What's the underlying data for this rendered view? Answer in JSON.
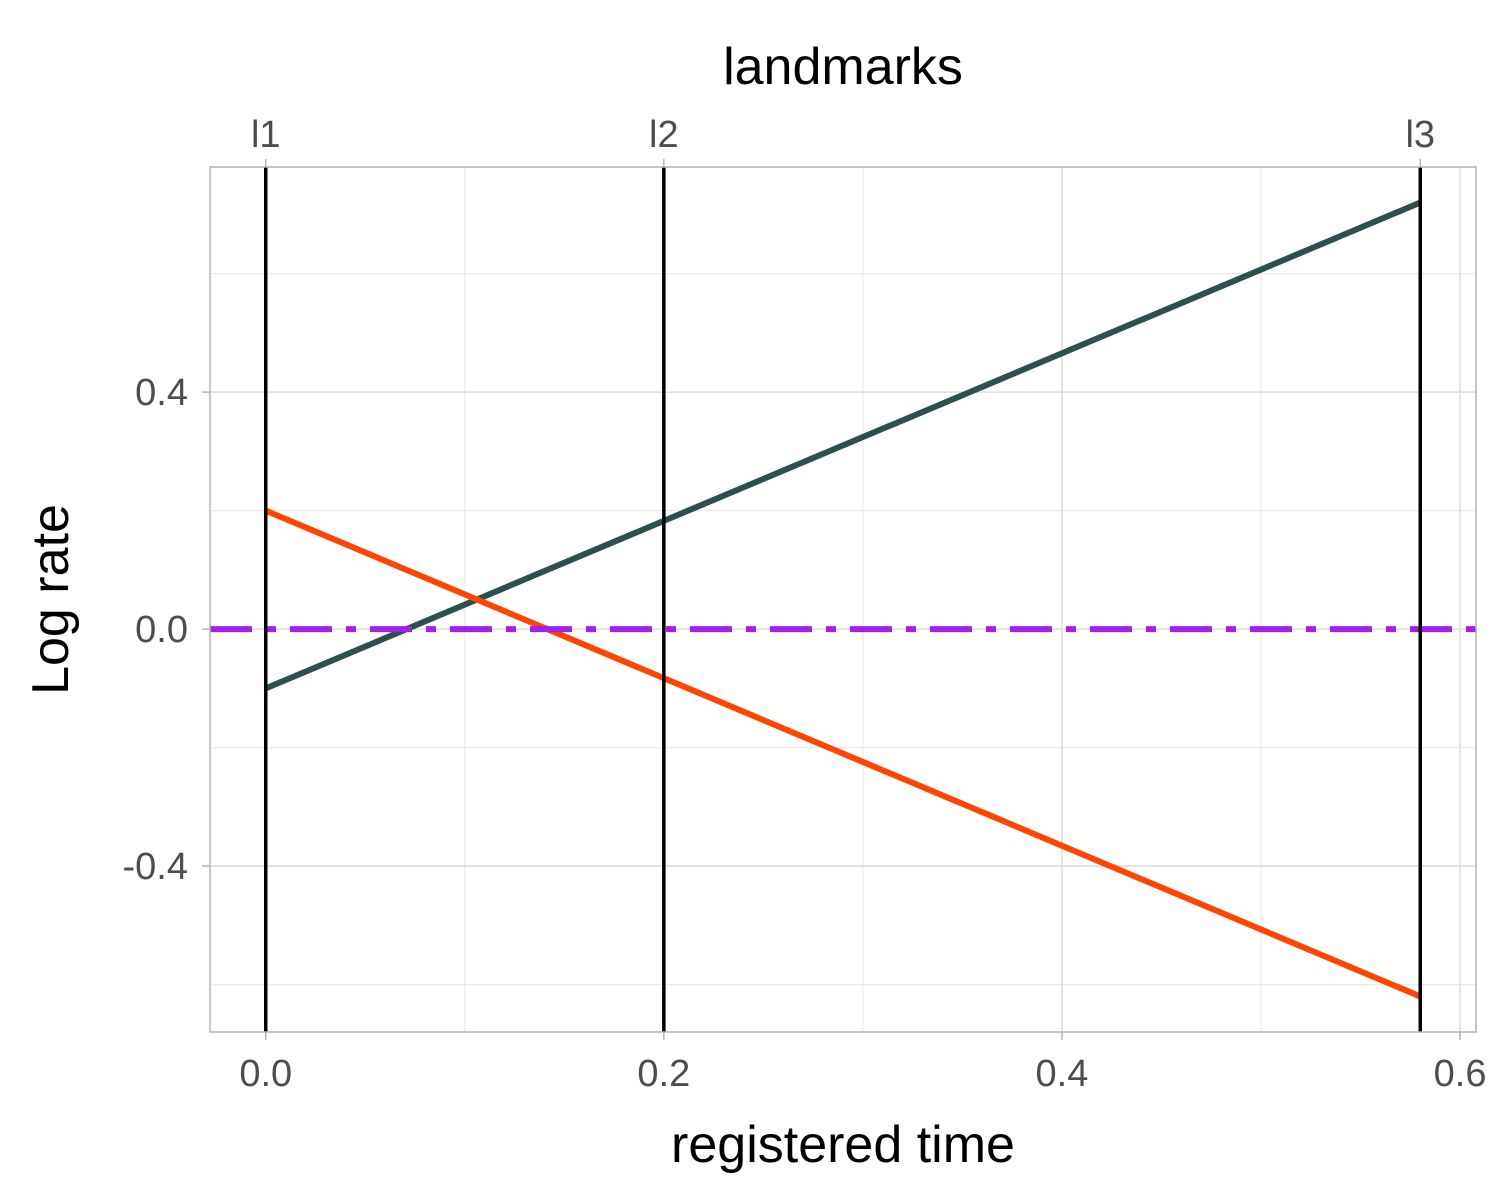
{
  "chart_data": {
    "type": "line",
    "title": "",
    "top_axis_title": "landmarks",
    "xlabel": "registered time",
    "ylabel": "Log rate",
    "xlim": [
      -0.028,
      0.608
    ],
    "ylim": [
      -0.68,
      0.78
    ],
    "x_ticks": [
      0.0,
      0.2,
      0.4,
      0.6
    ],
    "x_tick_labels": [
      "0.0",
      "0.2",
      "0.4",
      "0.6"
    ],
    "y_ticks": [
      -0.4,
      0.0,
      0.4
    ],
    "y_tick_labels": [
      "-0.4",
      "0.0",
      "0.4"
    ],
    "landmarks": [
      {
        "label": "l1",
        "x": 0.0
      },
      {
        "label": "l2",
        "x": 0.2
      },
      {
        "label": "l3",
        "x": 0.58
      }
    ],
    "series": [
      {
        "color": "#2f4f4f",
        "style": "solid",
        "x": [
          0.0,
          0.58
        ],
        "y": [
          -0.1,
          0.72
        ]
      },
      {
        "color": "#ff4500",
        "style": "solid",
        "x": [
          0.0,
          0.58
        ],
        "y": [
          0.2,
          -0.62
        ]
      },
      {
        "color": "#a020f0",
        "style": "dashdot",
        "x": [
          -0.028,
          0.608
        ],
        "y": [
          0.0,
          0.0
        ]
      }
    ],
    "grid": true,
    "legend": "none"
  }
}
